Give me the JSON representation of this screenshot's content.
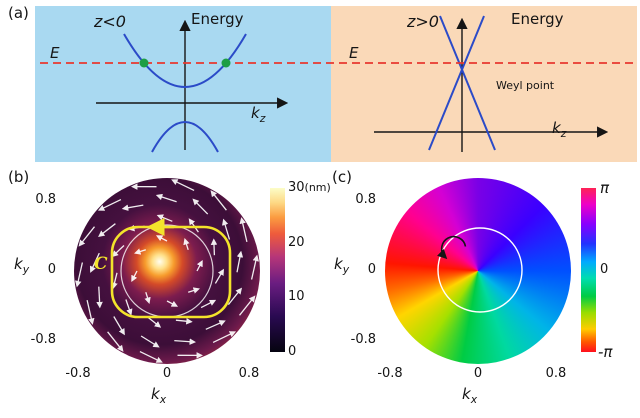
{
  "panel_a": {
    "label": "(a)",
    "left": {
      "region": "z<0",
      "ylabel": "Energy",
      "energy_level": "E",
      "xlabel_main": "k",
      "xlabel_sub": "z"
    },
    "right": {
      "region": "z>0",
      "ylabel": "Energy",
      "energy_level": "E",
      "weyl_label": "Weyl point",
      "xlabel_main": "k",
      "xlabel_sub": "z"
    }
  },
  "panel_b": {
    "label": "(b)",
    "ylabel_main": "k",
    "ylabel_sub": "y",
    "xlabel_main": "k",
    "xlabel_sub": "x",
    "y_ticks": [
      "0.8",
      "0",
      "-0.8"
    ],
    "x_ticks": [
      "-0.8",
      "0",
      "0.8"
    ],
    "colorbar": {
      "unit": "(nm)",
      "ticks": [
        "30",
        "20",
        "10",
        "0"
      ]
    },
    "contour_label": "C"
  },
  "panel_c": {
    "label": "(c)",
    "ylabel_main": "k",
    "ylabel_sub": "y",
    "xlabel_main": "k",
    "xlabel_sub": "x",
    "y_ticks": [
      "0.8",
      "0",
      "-0.8"
    ],
    "x_ticks": [
      "-0.8",
      "0",
      "0.8"
    ],
    "colorbar": {
      "ticks": [
        "π",
        "0",
        "-π"
      ]
    }
  },
  "colors": {
    "region_left_bg": "#a9d9f1",
    "region_right_bg": "#fad9b8",
    "energy_level_line": "#e8392f",
    "band_curve": "#2b4bc8",
    "state_dot": "#1e9e45",
    "contour_yellow": "#f3e32b"
  },
  "chart_data": [
    {
      "panel": "a",
      "type": "line",
      "title": "Energy dispersion schematic on two sides of interface",
      "subpanels": [
        {
          "region": "z<0",
          "xlabel": "k_z",
          "ylabel": "Energy",
          "series": [
            {
              "name": "upper gapped band",
              "description": "upward parabola with minimum above k_z axis"
            },
            {
              "name": "lower gapped band",
              "description": "downward parabola with maximum below k_z axis"
            }
          ],
          "annotations": [
            "dashed red energy level E crosses upper band at two green points"
          ]
        },
        {
          "region": "z>0",
          "xlabel": "k_z",
          "ylabel": "Energy",
          "series": [
            {
              "name": "linear bands",
              "description": "two straight lines crossing at the Weyl point"
            }
          ],
          "annotations": [
            "Weyl point at band crossing",
            "dashed red energy level E passes near crossing"
          ]
        }
      ]
    },
    {
      "panel": "b",
      "type": "heatmap",
      "xlabel": "k_x",
      "ylabel": "k_y",
      "x_ticks": [
        -0.8,
        0,
        0.8
      ],
      "y_ticks": [
        0.8,
        0,
        -0.8
      ],
      "xlim": [
        -1,
        1
      ],
      "ylim": [
        -1,
        1
      ],
      "colorbar": {
        "unit": "nm",
        "ticks": [
          0,
          10,
          20,
          30
        ],
        "range": [
          0,
          30
        ],
        "colormap": "magma-like"
      },
      "annotations": [
        "circular disk of data with bright ~30 nm spot at center",
        "white arrows form a vortex texture around the center",
        "yellow integration contour C (rounded loop) with counterclockwise arrow",
        "faint white circle inside disk"
      ]
    },
    {
      "panel": "c",
      "type": "heatmap",
      "xlabel": "k_x",
      "ylabel": "k_y",
      "x_ticks": [
        -0.8,
        0,
        0.8
      ],
      "y_ticks": [
        0.8,
        0,
        -0.8
      ],
      "xlim": [
        -1,
        1
      ],
      "ylim": [
        -1,
        1
      ],
      "colorbar": {
        "ticks": [
          "π",
          "0",
          "-π"
        ],
        "range": [
          "-π",
          "π"
        ],
        "colormap": "cyclic hue (phase)"
      },
      "annotations": [
        "phase winds by 2π around the center (full color wheel)",
        "white circle contour",
        "black circular arrow shows winding direction"
      ]
    }
  ]
}
